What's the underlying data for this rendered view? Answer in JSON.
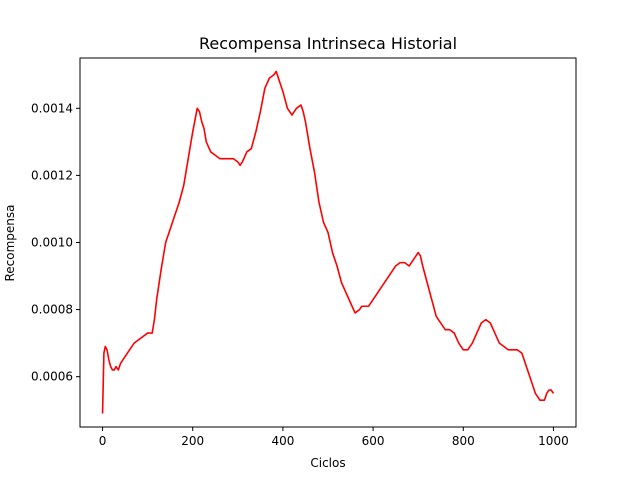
{
  "chart_data": {
    "type": "line",
    "title": "Recompensa Intrinseca Historial",
    "xlabel": "Ciclos",
    "ylabel": "Recompensa",
    "xlim": [
      -50,
      1050
    ],
    "ylim": [
      0.00045,
      0.00155
    ],
    "xticks": [
      0,
      200,
      400,
      600,
      800,
      1000
    ],
    "xtick_labels": [
      "0",
      "200",
      "400",
      "600",
      "800",
      "1000"
    ],
    "yticks": [
      0.0006,
      0.0008,
      0.001,
      0.0012,
      0.0014
    ],
    "ytick_labels": [
      "0.0006",
      "0.0008",
      "0.0010",
      "0.0012",
      "0.0014"
    ],
    "grid": false,
    "series": [
      {
        "color": "#ff0000",
        "x": [
          0,
          3,
          6,
          10,
          14,
          18,
          22,
          26,
          30,
          35,
          40,
          45,
          50,
          60,
          70,
          80,
          90,
          100,
          110,
          115,
          120,
          130,
          140,
          150,
          160,
          170,
          180,
          190,
          200,
          210,
          215,
          220,
          225,
          230,
          240,
          250,
          260,
          270,
          280,
          290,
          300,
          305,
          310,
          320,
          330,
          340,
          350,
          360,
          370,
          380,
          385,
          390,
          395,
          400,
          410,
          420,
          425,
          430,
          440,
          445,
          450,
          460,
          470,
          480,
          490,
          500,
          510,
          520,
          530,
          540,
          550,
          560,
          570,
          575,
          580,
          590,
          600,
          610,
          620,
          630,
          640,
          650,
          660,
          670,
          680,
          690,
          700,
          705,
          710,
          720,
          730,
          740,
          750,
          760,
          770,
          780,
          790,
          800,
          810,
          820,
          830,
          840,
          850,
          860,
          870,
          880,
          890,
          900,
          910,
          920,
          930,
          940,
          950,
          960,
          970,
          980,
          985,
          990,
          995,
          1000
        ],
        "y": [
          0.00049,
          0.00067,
          0.00069,
          0.00068,
          0.00065,
          0.00063,
          0.00062,
          0.00062,
          0.00063,
          0.00062,
          0.00064,
          0.00065,
          0.00066,
          0.00068,
          0.0007,
          0.00071,
          0.00072,
          0.00073,
          0.00073,
          0.00077,
          0.00083,
          0.00092,
          0.001,
          0.00104,
          0.00108,
          0.00112,
          0.00117,
          0.00125,
          0.00133,
          0.0014,
          0.00139,
          0.00136,
          0.00134,
          0.0013,
          0.00127,
          0.00126,
          0.00125,
          0.00125,
          0.00125,
          0.00125,
          0.00124,
          0.00123,
          0.00124,
          0.00127,
          0.00128,
          0.00133,
          0.00139,
          0.00146,
          0.00149,
          0.0015,
          0.00151,
          0.00149,
          0.00147,
          0.00145,
          0.0014,
          0.00138,
          0.00139,
          0.0014,
          0.00141,
          0.00139,
          0.00136,
          0.00128,
          0.00121,
          0.00112,
          0.00106,
          0.00103,
          0.00097,
          0.00093,
          0.00088,
          0.00085,
          0.00082,
          0.00079,
          0.0008,
          0.00081,
          0.00081,
          0.00081,
          0.00083,
          0.00085,
          0.00087,
          0.00089,
          0.00091,
          0.00093,
          0.00094,
          0.00094,
          0.00093,
          0.00095,
          0.00097,
          0.00096,
          0.00093,
          0.00088,
          0.00083,
          0.00078,
          0.00076,
          0.00074,
          0.00074,
          0.00073,
          0.0007,
          0.00068,
          0.00068,
          0.0007,
          0.00073,
          0.00076,
          0.00077,
          0.00076,
          0.00073,
          0.0007,
          0.00069,
          0.00068,
          0.00068,
          0.00068,
          0.00067,
          0.00063,
          0.00059,
          0.00055,
          0.00053,
          0.00053,
          0.00055,
          0.00056,
          0.00056,
          0.00055
        ]
      }
    ]
  }
}
